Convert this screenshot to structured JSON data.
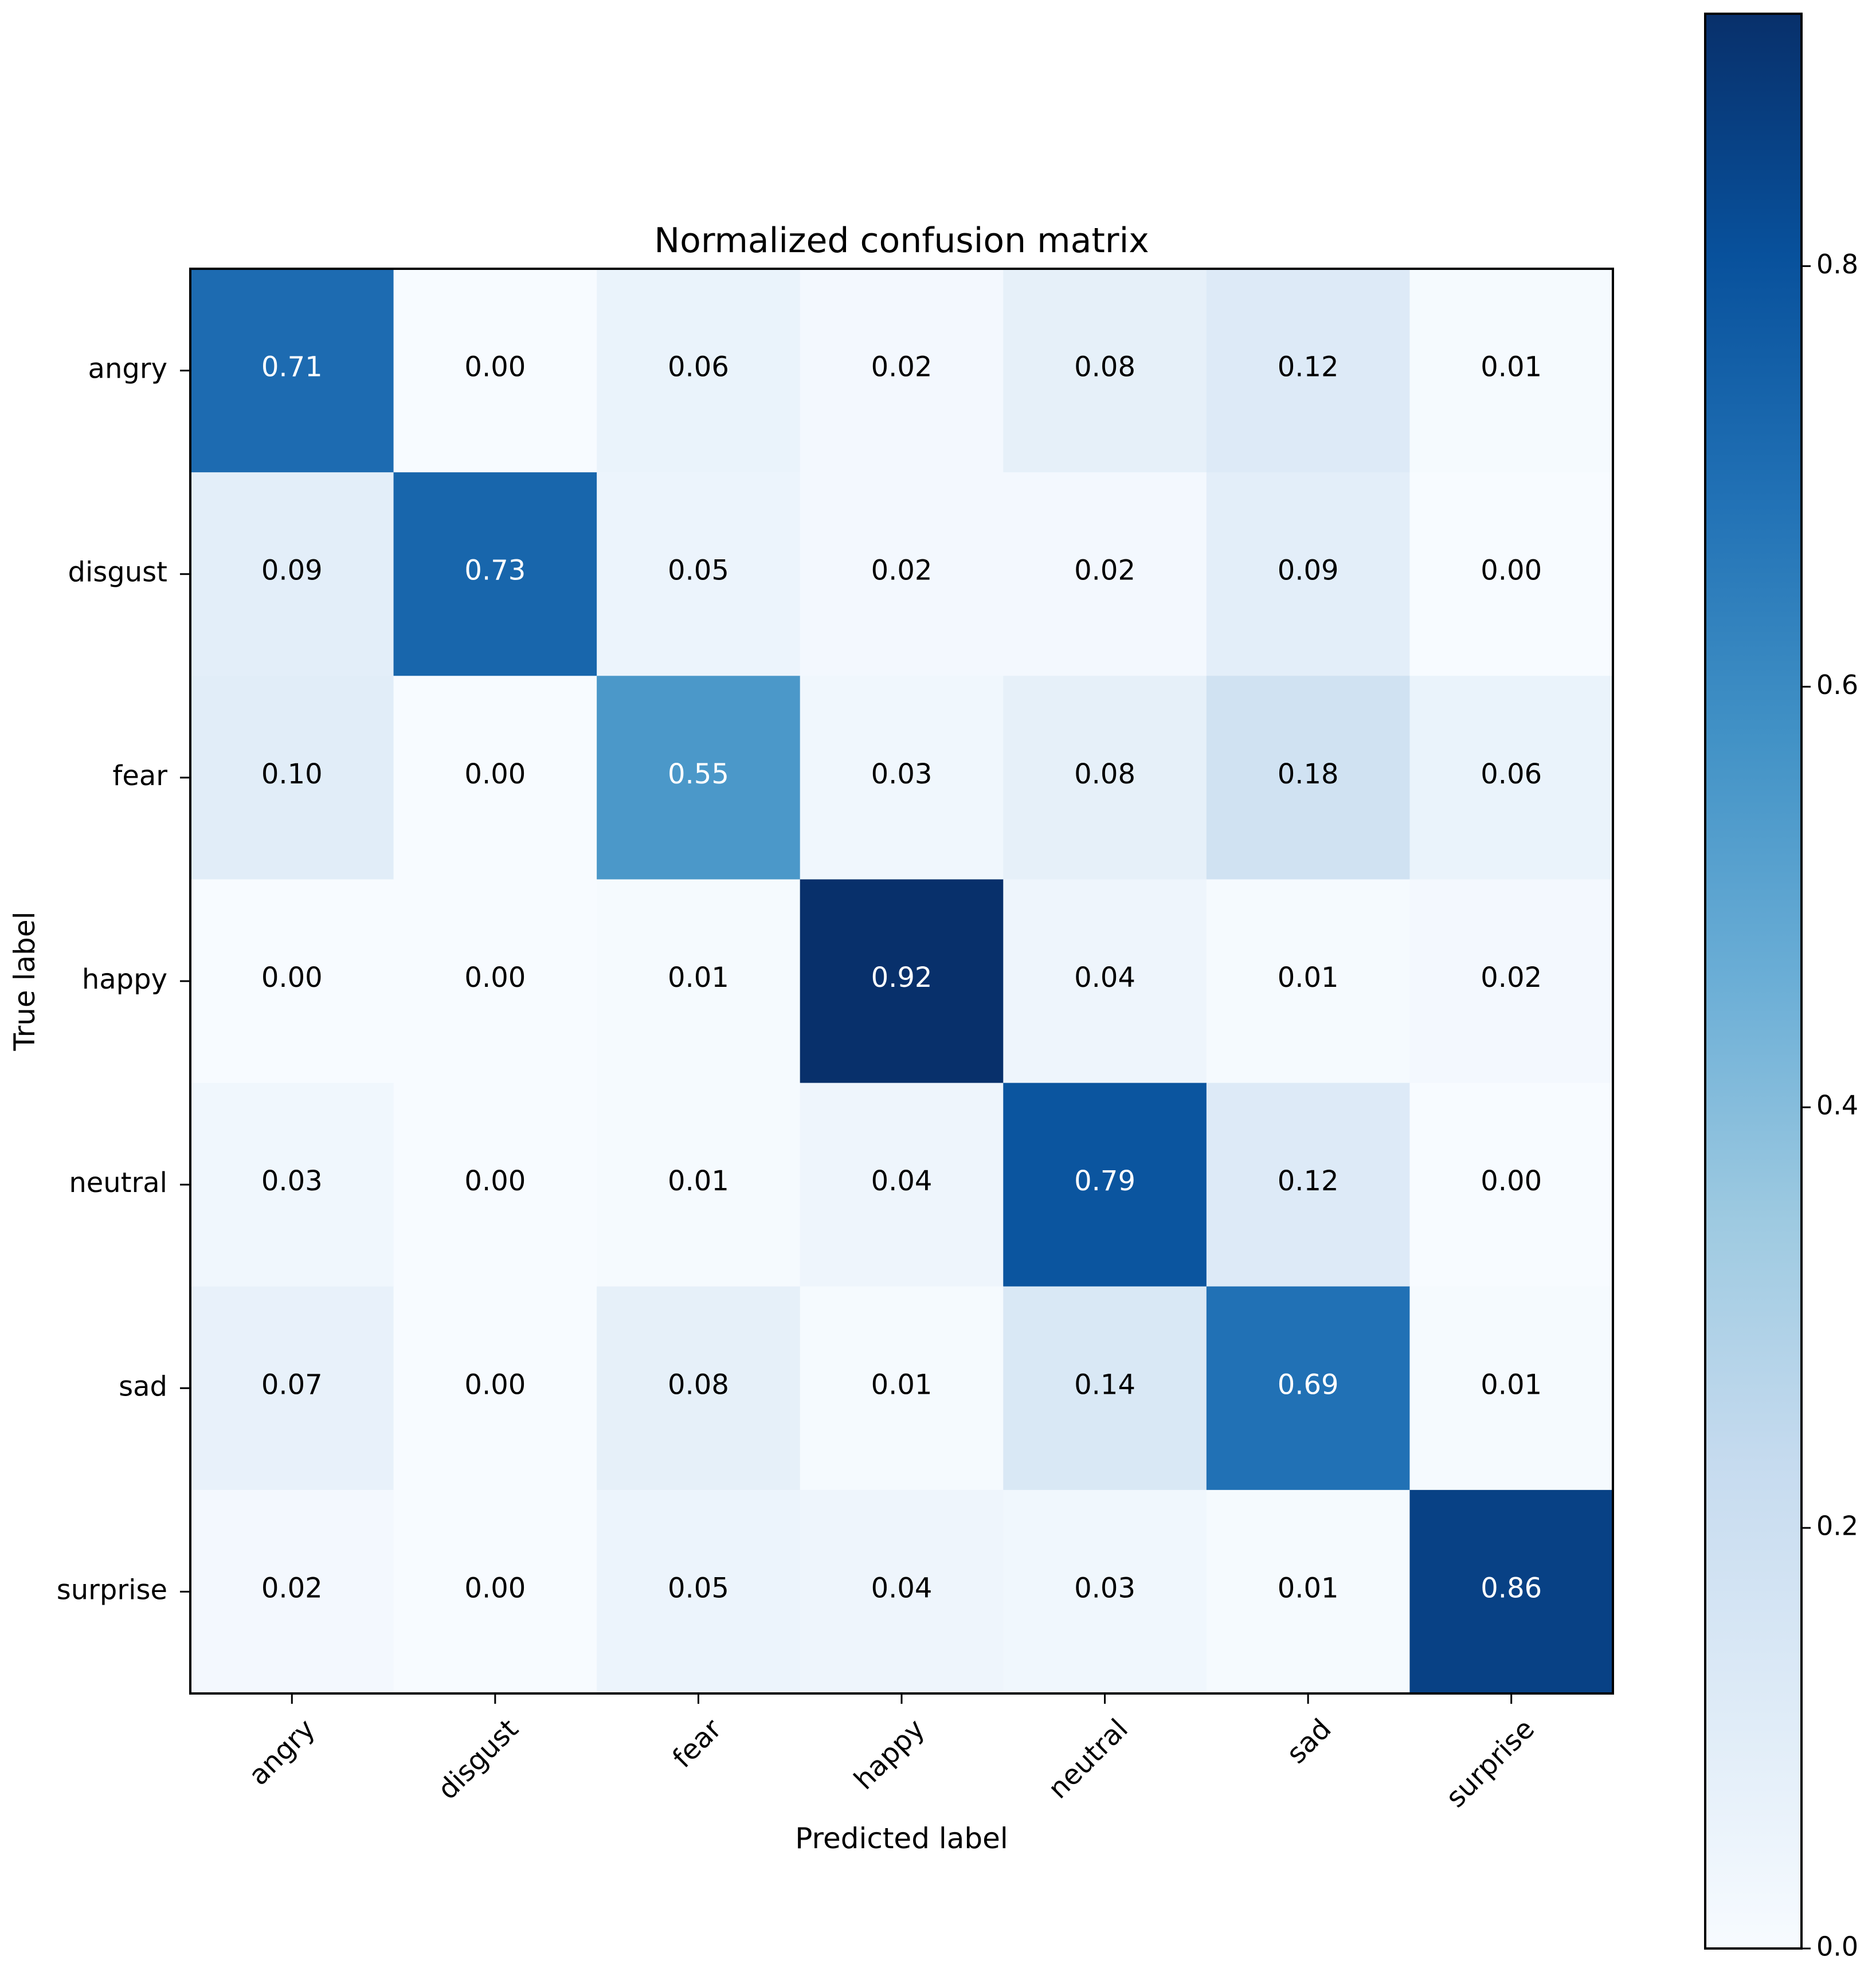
{
  "chart_data": {
    "type": "heatmap",
    "title": "Normalized confusion matrix",
    "xlabel": "Predicted label",
    "ylabel": "True label",
    "x_categories": [
      "angry",
      "disgust",
      "fear",
      "happy",
      "neutral",
      "sad",
      "surprise"
    ],
    "y_categories": [
      "angry",
      "disgust",
      "fear",
      "happy",
      "neutral",
      "sad",
      "surprise"
    ],
    "values": [
      [
        0.71,
        0.0,
        0.06,
        0.02,
        0.08,
        0.12,
        0.01
      ],
      [
        0.09,
        0.73,
        0.05,
        0.02,
        0.02,
        0.09,
        0.0
      ],
      [
        0.1,
        0.0,
        0.55,
        0.03,
        0.08,
        0.18,
        0.06
      ],
      [
        0.0,
        0.0,
        0.01,
        0.92,
        0.04,
        0.01,
        0.02
      ],
      [
        0.03,
        0.0,
        0.01,
        0.04,
        0.79,
        0.12,
        0.0
      ],
      [
        0.07,
        0.0,
        0.08,
        0.01,
        0.14,
        0.69,
        0.01
      ],
      [
        0.02,
        0.0,
        0.05,
        0.04,
        0.03,
        0.01,
        0.86
      ]
    ],
    "value_labels": [
      [
        "0.71",
        "0.00",
        "0.06",
        "0.02",
        "0.08",
        "0.12",
        "0.01"
      ],
      [
        "0.09",
        "0.73",
        "0.05",
        "0.02",
        "0.02",
        "0.09",
        "0.00"
      ],
      [
        "0.10",
        "0.00",
        "0.55",
        "0.03",
        "0.08",
        "0.18",
        "0.06"
      ],
      [
        "0.00",
        "0.00",
        "0.01",
        "0.92",
        "0.04",
        "0.01",
        "0.02"
      ],
      [
        "0.03",
        "0.00",
        "0.01",
        "0.04",
        "0.79",
        "0.12",
        "0.00"
      ],
      [
        "0.07",
        "0.00",
        "0.08",
        "0.01",
        "0.14",
        "0.69",
        "0.01"
      ],
      [
        "0.02",
        "0.00",
        "0.05",
        "0.04",
        "0.03",
        "0.01",
        "0.86"
      ]
    ],
    "colormap": "Blues",
    "colorbar": {
      "min": 0.0,
      "max": 0.92,
      "ticks": [
        0.0,
        0.2,
        0.4,
        0.6,
        0.8
      ],
      "tick_labels": [
        "0.0",
        "0.2",
        "0.4",
        "0.6",
        "0.8"
      ]
    },
    "text_color_threshold": 0.46,
    "text_color_dark": "#000000",
    "text_color_light": "#ffffff"
  }
}
